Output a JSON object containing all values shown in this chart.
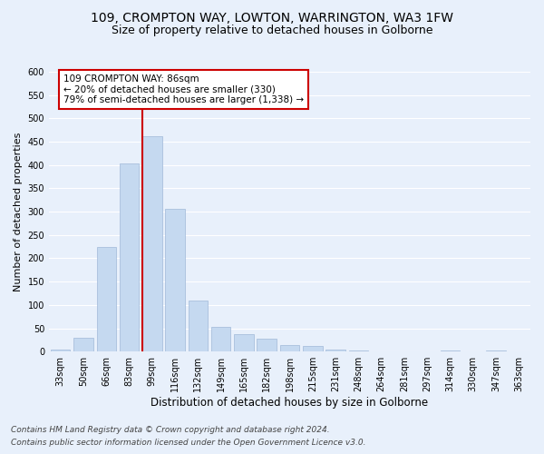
{
  "title_line1": "109, CROMPTON WAY, LOWTON, WARRINGTON, WA3 1FW",
  "title_line2": "Size of property relative to detached houses in Golborne",
  "xlabel": "Distribution of detached houses by size in Golborne",
  "ylabel": "Number of detached properties",
  "categories": [
    "33sqm",
    "50sqm",
    "66sqm",
    "83sqm",
    "99sqm",
    "116sqm",
    "132sqm",
    "149sqm",
    "165sqm",
    "182sqm",
    "198sqm",
    "215sqm",
    "231sqm",
    "248sqm",
    "264sqm",
    "281sqm",
    "297sqm",
    "314sqm",
    "330sqm",
    "347sqm",
    "363sqm"
  ],
  "bar_heights": [
    5,
    30,
    225,
    403,
    462,
    307,
    110,
    52,
    38,
    27,
    14,
    13,
    5,
    2,
    0,
    0,
    0,
    3,
    0,
    2,
    0
  ],
  "bar_color": "#c5d9f0",
  "bar_edge_color": "#a0b8d8",
  "vline_index": 4,
  "vline_color": "#cc0000",
  "ylim": [
    0,
    600
  ],
  "yticks": [
    0,
    50,
    100,
    150,
    200,
    250,
    300,
    350,
    400,
    450,
    500,
    550,
    600
  ],
  "annotation_text": "109 CROMPTON WAY: 86sqm\n← 20% of detached houses are smaller (330)\n79% of semi-detached houses are larger (1,338) →",
  "annotation_box_color": "#ffffff",
  "annotation_border_color": "#cc0000",
  "footnote1": "Contains HM Land Registry data © Crown copyright and database right 2024.",
  "footnote2": "Contains public sector information licensed under the Open Government Licence v3.0.",
  "bg_color": "#e8f0fb",
  "plot_bg_color": "#e8f0fb",
  "grid_color": "#ffffff",
  "title_fontsize": 10,
  "subtitle_fontsize": 9,
  "xlabel_fontsize": 8.5,
  "ylabel_fontsize": 8,
  "tick_fontsize": 7,
  "annotation_fontsize": 7.5,
  "footnote_fontsize": 6.5
}
